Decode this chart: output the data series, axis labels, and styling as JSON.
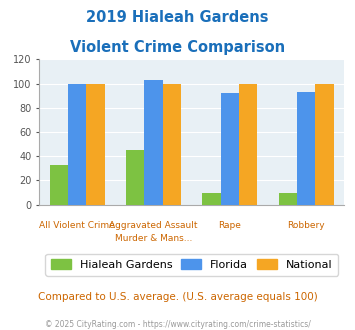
{
  "title_line1": "2019 Hialeah Gardens",
  "title_line2": "Violent Crime Comparison",
  "top_labels": [
    "",
    "Aggravated Assault",
    "",
    ""
  ],
  "bot_labels": [
    "All Violent Crime",
    "Murder & Mans...",
    "Rape",
    "Robbery"
  ],
  "series": {
    "Hialeah Gardens": [
      33,
      45,
      10,
      10
    ],
    "Florida": [
      100,
      103,
      92,
      93
    ],
    "National": [
      100,
      100,
      100,
      100
    ]
  },
  "colors": {
    "Hialeah Gardens": "#7dc242",
    "Florida": "#4d94eb",
    "National": "#f5a623"
  },
  "ylim": [
    0,
    120
  ],
  "yticks": [
    0,
    20,
    40,
    60,
    80,
    100,
    120
  ],
  "title_color": "#1a6fba",
  "xlabel_color": "#cc6600",
  "bg_color": "#e8f0f5",
  "footnote": "Compared to U.S. average. (U.S. average equals 100)",
  "copyright": "© 2025 CityRating.com - https://www.cityrating.com/crime-statistics/",
  "footnote_color": "#cc6600",
  "copyright_color": "#999999"
}
